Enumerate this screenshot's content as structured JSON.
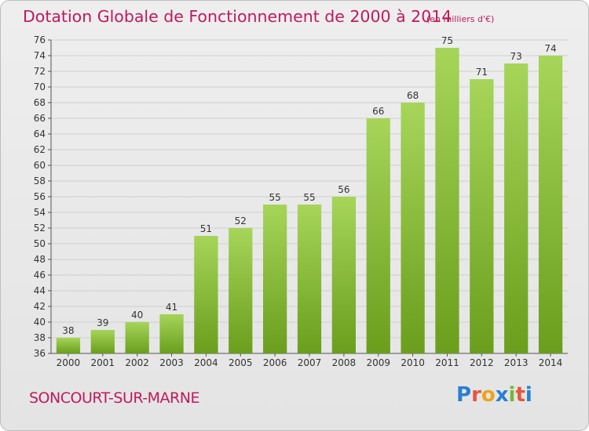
{
  "header": {
    "title": "Dotation Globale de Fonctionnement de 2000 à 2014",
    "unit_note": "(en milliers d'€)"
  },
  "footer": {
    "commune": "SONCOURT-SUR-MARNE",
    "logo_letters": [
      "P",
      "r",
      "o",
      "x",
      "i",
      "t",
      "i"
    ],
    "logo_colors": [
      "#2a7fd0",
      "#e8553a",
      "#e8a51e",
      "#2a7fd0",
      "#74b83a",
      "#e8553a",
      "#2a7fd0"
    ]
  },
  "colors": {
    "title": "#c01a5c",
    "bar_top": "#a6d55a",
    "bar_bottom": "#6a9e1c",
    "grid": "#cfcfcf",
    "axis": "#555555"
  },
  "chart_data": {
    "type": "bar",
    "title": "Dotation Globale de Fonctionnement de 2000 à 2014",
    "xlabel": "",
    "ylabel": "",
    "categories": [
      "2000",
      "2001",
      "2002",
      "2003",
      "2004",
      "2005",
      "2006",
      "2007",
      "2008",
      "2009",
      "2010",
      "2011",
      "2012",
      "2013",
      "2014"
    ],
    "values": [
      38,
      39,
      40,
      41,
      51,
      52,
      55,
      55,
      56,
      66,
      68,
      75,
      71,
      73,
      74
    ],
    "ylim": [
      36,
      76
    ],
    "yticks": [
      36,
      38,
      40,
      42,
      44,
      46,
      48,
      50,
      52,
      54,
      56,
      58,
      60,
      62,
      64,
      66,
      68,
      70,
      72,
      74,
      76
    ],
    "grid": true
  }
}
